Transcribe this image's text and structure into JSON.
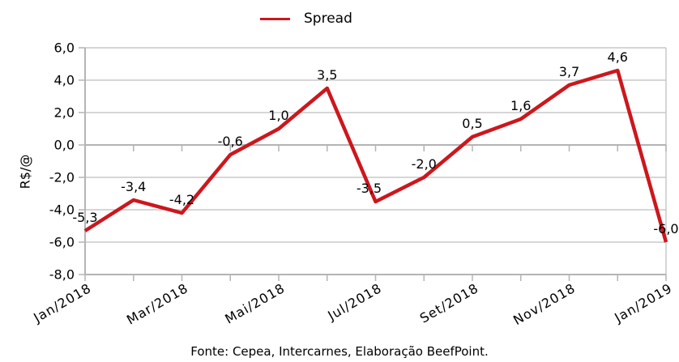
{
  "legend": {
    "series_label": "Spread",
    "line_color": "#cc171d"
  },
  "y_axis_title": "R$/@",
  "footer": {
    "source_text": "Fonte: Cepea, Intercarnes, Elaboração BeefPoint."
  },
  "chart_data": {
    "type": "line",
    "title": "",
    "ylabel": "R$/@",
    "xlabel": "",
    "grid": true,
    "legend_position": "top",
    "ylim": [
      -8,
      6
    ],
    "series": [
      {
        "name": "Spread",
        "color": "#cc171d",
        "values": [
          -5.3,
          -3.4,
          -4.2,
          -0.6,
          1.0,
          3.5,
          -3.5,
          -2.0,
          0.5,
          1.6,
          3.7,
          4.6,
          -6.0
        ]
      }
    ],
    "point_labels": [
      "-5,3",
      "-3,4",
      "-4,2",
      "-0,6",
      "1,0",
      "3,5",
      "-3,5",
      "-2,0",
      "0,5",
      "1,6",
      "3,7",
      "4,6",
      "-6,0"
    ],
    "x_ticks": [
      {
        "index": 0,
        "label": "Jan/2018"
      },
      {
        "index": 2,
        "label": "Mar/2018"
      },
      {
        "index": 4,
        "label": "Mai/2018"
      },
      {
        "index": 6,
        "label": "Jul/2018"
      },
      {
        "index": 8,
        "label": "Set/2018"
      },
      {
        "index": 10,
        "label": "Nov/2018"
      },
      {
        "index": 12,
        "label": "Jan/2019"
      }
    ],
    "y_ticks": [
      {
        "value": 6,
        "label": "6,0"
      },
      {
        "value": 4,
        "label": "4,0"
      },
      {
        "value": 2,
        "label": "2,0"
      },
      {
        "value": 0,
        "label": "0,0"
      },
      {
        "value": -2,
        "label": "-2,0"
      },
      {
        "value": -4,
        "label": "-4,0"
      },
      {
        "value": -6,
        "label": "-6,0"
      },
      {
        "value": -8,
        "label": "-8,0"
      }
    ],
    "colors": {
      "line": "#cc171d",
      "grid": "#c8c8c8",
      "axis": "#b4b4b4",
      "text": "#000000"
    }
  }
}
